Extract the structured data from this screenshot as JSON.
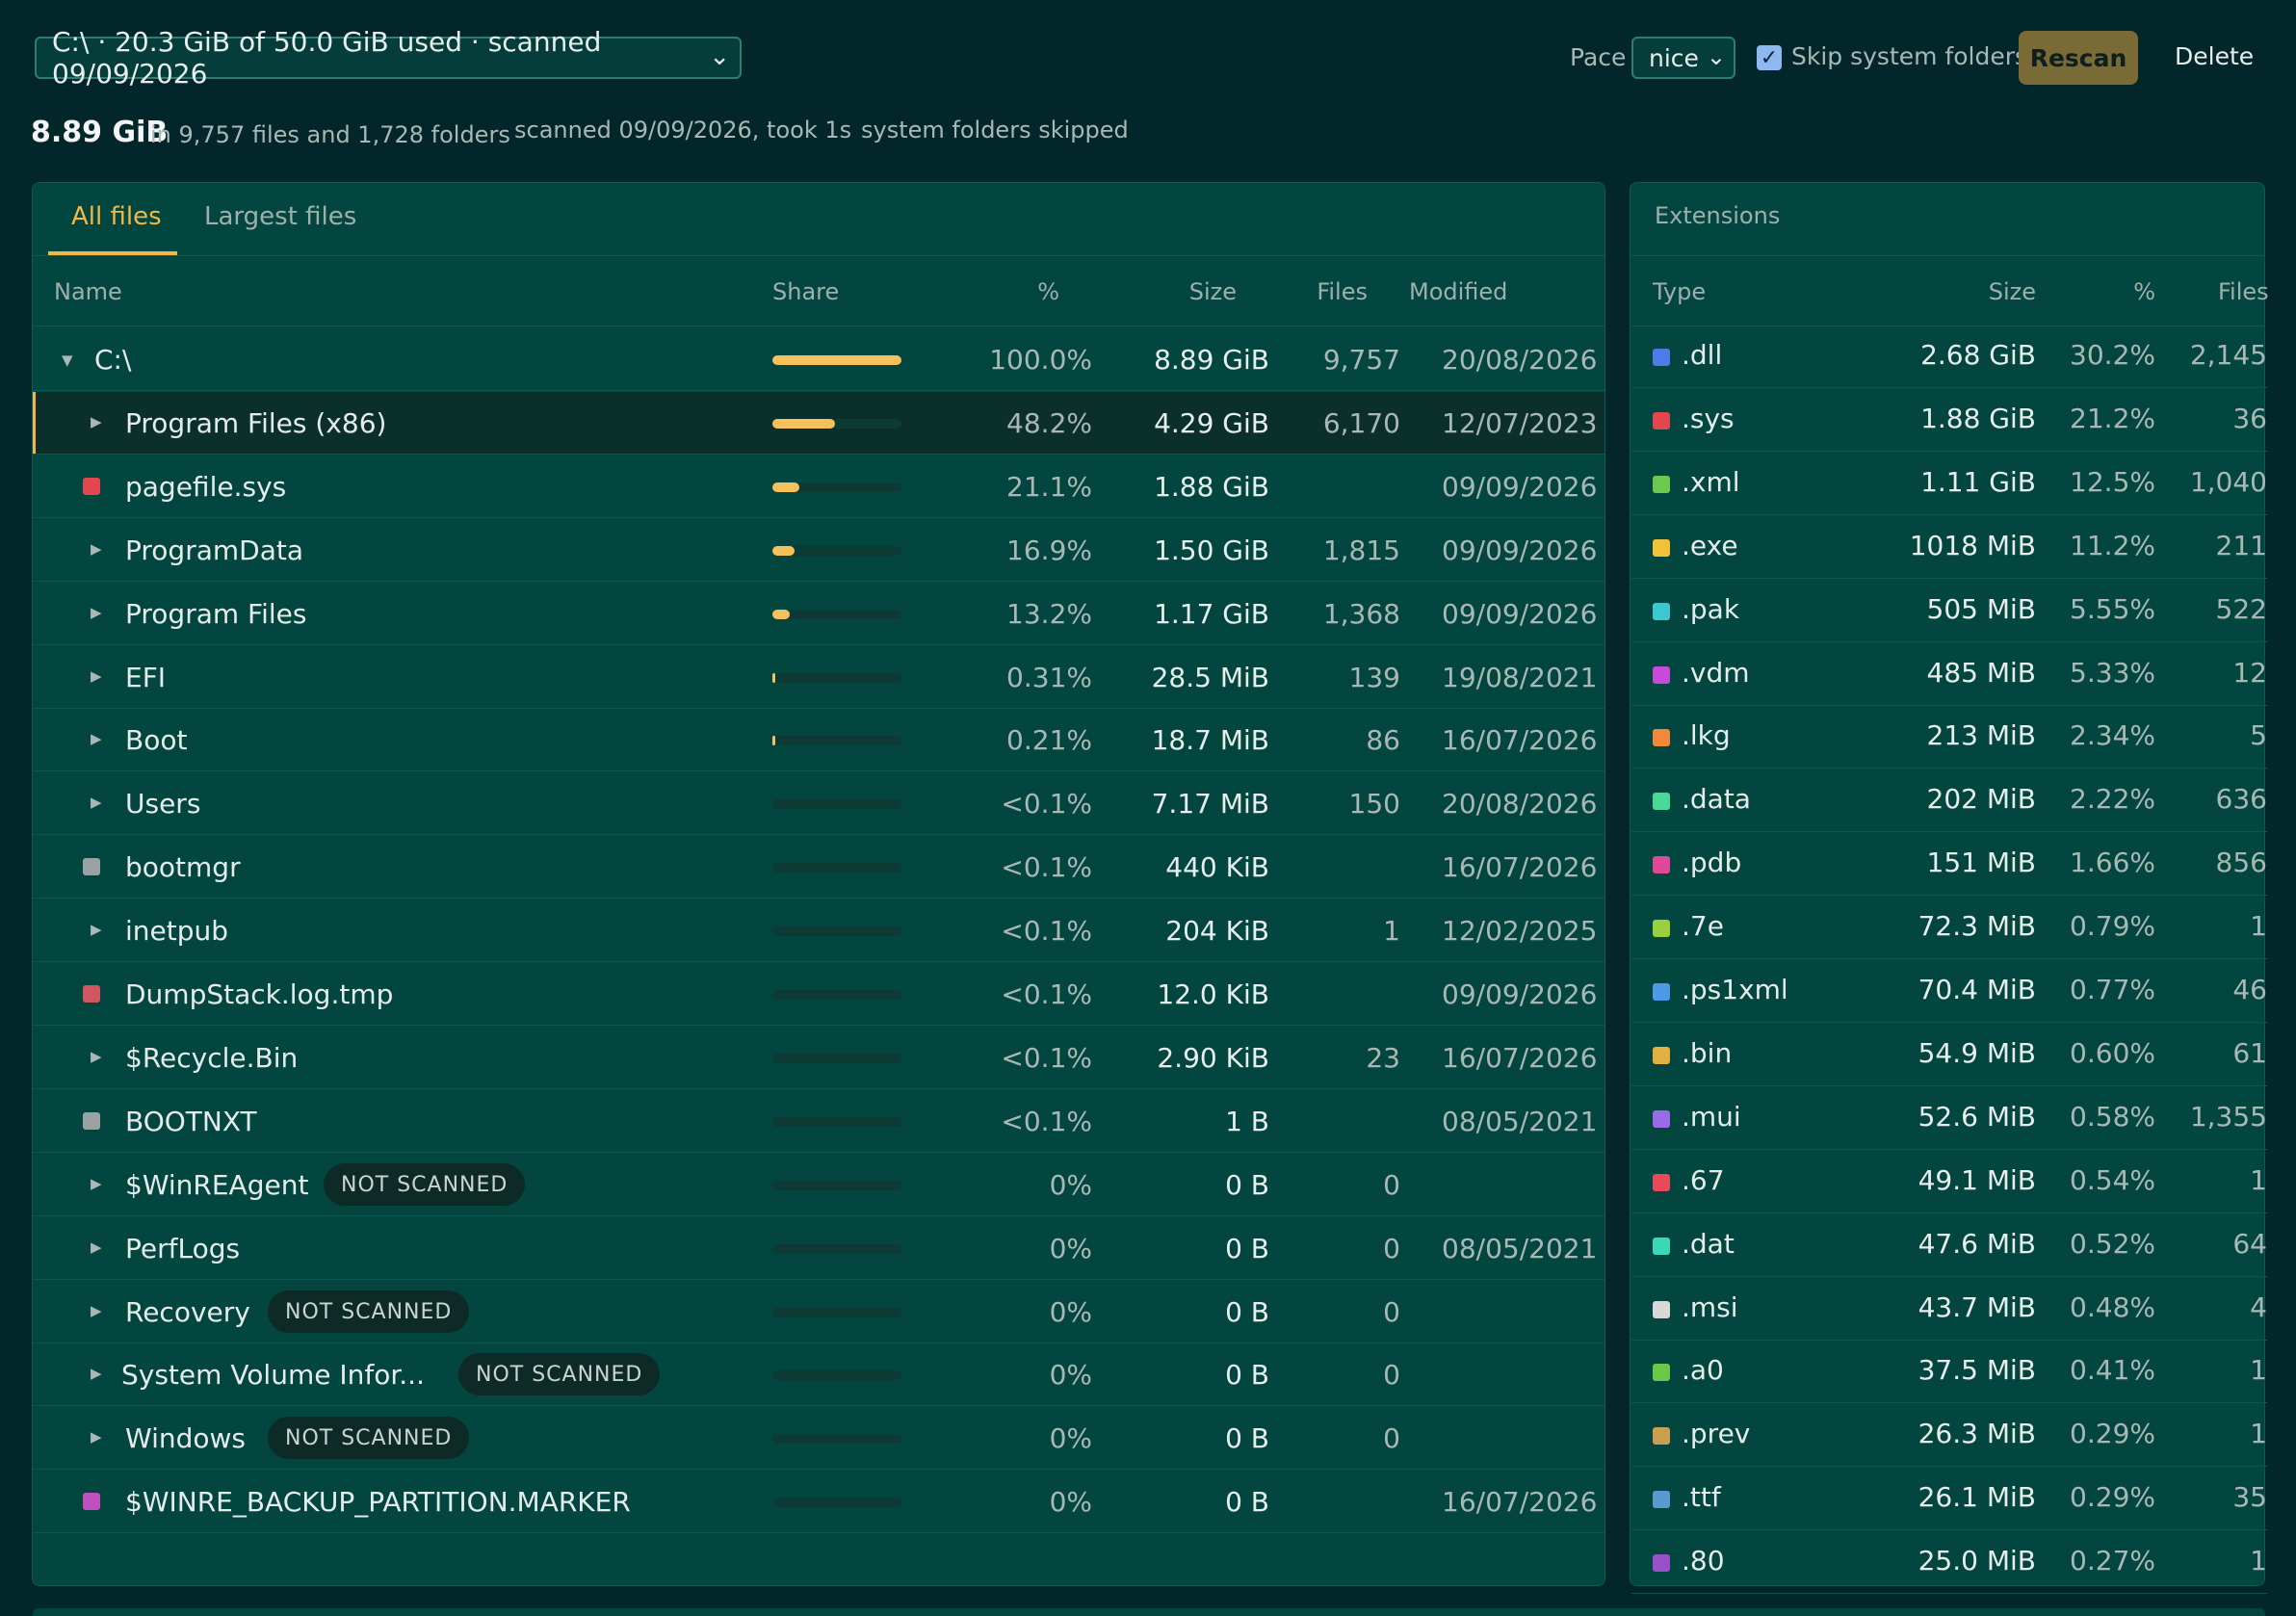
{
  "toolbar": {
    "drive_select": "C:\\ · 20.3 GiB of 50.0 GiB used · scanned 09/09/2026",
    "pace_label": "Pace",
    "pace_value": "nice",
    "skip_label": "Skip system folders",
    "skip_checked": true,
    "rescan_label": "Rescan",
    "delete_label": "Delete"
  },
  "summary": {
    "total_size": "8.89 GiB",
    "files_folders": "in 9,757 files and 1,728 folders",
    "scanned": "scanned 09/09/2026, took 1s",
    "skipped": "system folders skipped"
  },
  "files_panel": {
    "tabs": [
      "All files",
      "Largest files"
    ],
    "columns": {
      "name": "Name",
      "share": "Share",
      "pct": "%",
      "size": "Size",
      "files": "Files",
      "modified": "Modified"
    },
    "rows": [
      {
        "name": "C:\\",
        "pct": "100.0%",
        "size": "8.89 GiB",
        "files": "9,757",
        "modified": "20/08/2026",
        "share": 1.0,
        "kind": "root"
      },
      {
        "name": "Program Files (x86)",
        "pct": "48.2%",
        "size": "4.29 GiB",
        "files": "6,170",
        "modified": "12/07/2023",
        "share": 0.482,
        "kind": "folder",
        "selected": true
      },
      {
        "name": "pagefile.sys",
        "pct": "21.1%",
        "size": "1.88 GiB",
        "files": "",
        "modified": "09/09/2026",
        "share": 0.211,
        "kind": "file",
        "color": "#e0484e"
      },
      {
        "name": "ProgramData",
        "pct": "16.9%",
        "size": "1.50 GiB",
        "files": "1,815",
        "modified": "09/09/2026",
        "share": 0.169,
        "kind": "folder"
      },
      {
        "name": "Program Files",
        "pct": "13.2%",
        "size": "1.17 GiB",
        "files": "1,368",
        "modified": "09/09/2026",
        "share": 0.132,
        "kind": "folder"
      },
      {
        "name": "EFI",
        "pct": "0.31%",
        "size": "28.5 MiB",
        "files": "139",
        "modified": "19/08/2021",
        "share": 0.0031,
        "kind": "folder"
      },
      {
        "name": "Boot",
        "pct": "0.21%",
        "size": "18.7 MiB",
        "files": "86",
        "modified": "16/07/2026",
        "share": 0.0021,
        "kind": "folder"
      },
      {
        "name": "Users",
        "pct": "<0.1%",
        "size": "7.17 MiB",
        "files": "150",
        "modified": "20/08/2026",
        "share": 0,
        "kind": "folder"
      },
      {
        "name": "bootmgr",
        "pct": "<0.1%",
        "size": "440 KiB",
        "files": "",
        "modified": "16/07/2026",
        "share": 0,
        "kind": "file",
        "color": "#9aa3a2"
      },
      {
        "name": "inetpub",
        "pct": "<0.1%",
        "size": "204 KiB",
        "files": "1",
        "modified": "12/02/2025",
        "share": 0,
        "kind": "folder"
      },
      {
        "name": "DumpStack.log.tmp",
        "pct": "<0.1%",
        "size": "12.0 KiB",
        "files": "",
        "modified": "09/09/2026",
        "share": 0,
        "kind": "file",
        "color": "#d05660"
      },
      {
        "name": "$Recycle.Bin",
        "pct": "<0.1%",
        "size": "2.90 KiB",
        "files": "23",
        "modified": "16/07/2026",
        "share": 0,
        "kind": "folder"
      },
      {
        "name": "BOOTNXT",
        "pct": "<0.1%",
        "size": "1 B",
        "files": "",
        "modified": "08/05/2021",
        "share": 0,
        "kind": "file",
        "color": "#9aa3a2"
      },
      {
        "name": "$WinREAgent",
        "pct": "0%",
        "size": "0 B",
        "files": "0",
        "modified": "",
        "share": 0,
        "kind": "folder",
        "badge": "NOT SCANNED"
      },
      {
        "name": "PerfLogs",
        "pct": "0%",
        "size": "0 B",
        "files": "0",
        "modified": "08/05/2021",
        "share": 0,
        "kind": "folder"
      },
      {
        "name": "Recovery",
        "pct": "0%",
        "size": "0 B",
        "files": "0",
        "modified": "",
        "share": 0,
        "kind": "folder",
        "badge": "NOT SCANNED"
      },
      {
        "name": "System Volume Infor...",
        "pct": "0%",
        "size": "0 B",
        "files": "0",
        "modified": "",
        "share": 0,
        "kind": "folder",
        "badge": "NOT SCANNED"
      },
      {
        "name": "Windows",
        "pct": "0%",
        "size": "0 B",
        "files": "0",
        "modified": "",
        "share": 0,
        "kind": "folder",
        "badge": "NOT SCANNED"
      },
      {
        "name": "$WINRE_BACKUP_PARTITION.MARKER",
        "pct": "0%",
        "size": "0 B",
        "files": "",
        "modified": "16/07/2026",
        "share": 0,
        "kind": "file",
        "color": "#c050c0"
      }
    ]
  },
  "extensions_panel": {
    "title": "Extensions",
    "columns": {
      "type": "Type",
      "size": "Size",
      "pct": "%",
      "files": "Files"
    },
    "rows": [
      {
        "type": ".dll",
        "size": "2.68 GiB",
        "pct": "30.2%",
        "files": "2,145",
        "color": "#4f7ae8"
      },
      {
        "type": ".sys",
        "size": "1.88 GiB",
        "pct": "21.2%",
        "files": "36",
        "color": "#e0484e"
      },
      {
        "type": ".xml",
        "size": "1.11 GiB",
        "pct": "12.5%",
        "files": "1,040",
        "color": "#6cc94e"
      },
      {
        "type": ".exe",
        "size": "1018 MiB",
        "pct": "11.2%",
        "files": "211",
        "color": "#f0c23a"
      },
      {
        "type": ".pak",
        "size": "505 MiB",
        "pct": "5.55%",
        "files": "522",
        "color": "#3cc8d0"
      },
      {
        "type": ".vdm",
        "size": "485 MiB",
        "pct": "5.33%",
        "files": "12",
        "color": "#c84ad8"
      },
      {
        "type": ".lkg",
        "size": "213 MiB",
        "pct": "2.34%",
        "files": "5",
        "color": "#f08a3a"
      },
      {
        "type": ".data",
        "size": "202 MiB",
        "pct": "2.22%",
        "files": "636",
        "color": "#4ad898"
      },
      {
        "type": ".pdb",
        "size": "151 MiB",
        "pct": "1.66%",
        "files": "856",
        "color": "#e0489a"
      },
      {
        "type": ".7e",
        "size": "72.3 MiB",
        "pct": "0.79%",
        "files": "1",
        "color": "#9ad040"
      },
      {
        "type": ".ps1xml",
        "size": "70.4 MiB",
        "pct": "0.77%",
        "files": "46",
        "color": "#4a9ae8"
      },
      {
        "type": ".bin",
        "size": "54.9 MiB",
        "pct": "0.60%",
        "files": "61",
        "color": "#e0b040"
      },
      {
        "type": ".mui",
        "size": "52.6 MiB",
        "pct": "0.58%",
        "files": "1,355",
        "color": "#9a6ae8"
      },
      {
        "type": ".67",
        "size": "49.1 MiB",
        "pct": "0.54%",
        "files": "1",
        "color": "#e84a5a"
      },
      {
        "type": ".dat",
        "size": "47.6 MiB",
        "pct": "0.52%",
        "files": "64",
        "color": "#3ad8b8"
      },
      {
        "type": ".msi",
        "size": "43.7 MiB",
        "pct": "0.48%",
        "files": "4",
        "color": "#d8d8d8"
      },
      {
        "type": ".a0",
        "size": "37.5 MiB",
        "pct": "0.41%",
        "files": "1",
        "color": "#6ac848"
      },
      {
        "type": ".prev",
        "size": "26.3 MiB",
        "pct": "0.29%",
        "files": "1",
        "color": "#c8a050"
      },
      {
        "type": ".ttf",
        "size": "26.1 MiB",
        "pct": "0.29%",
        "files": "35",
        "color": "#5a9ad0"
      },
      {
        "type": ".80",
        "size": "25.0 MiB",
        "pct": "0.27%",
        "files": "1",
        "color": "#9a50c8"
      }
    ]
  }
}
